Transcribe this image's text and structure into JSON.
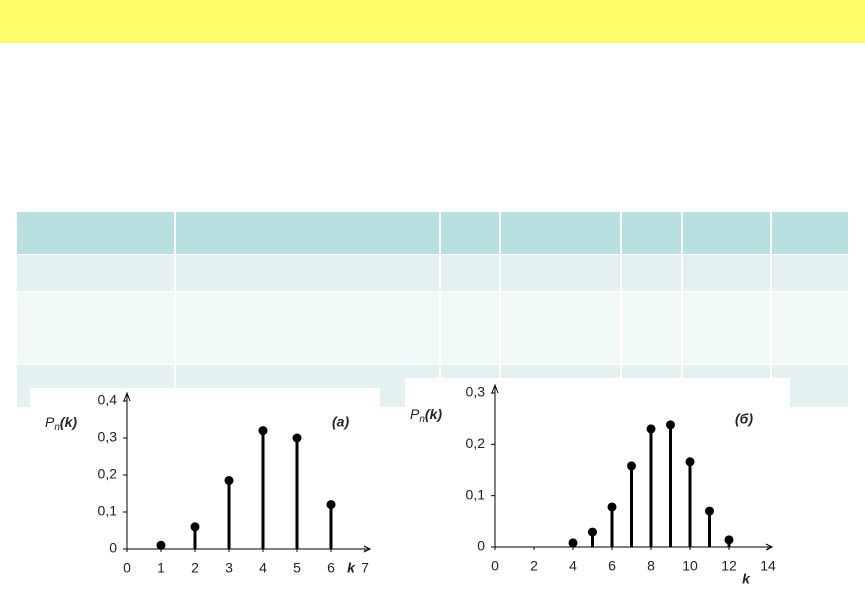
{
  "chart_data": [
    {
      "type": "stem",
      "annotation": "(а)",
      "ylabel": [
        "P",
        "n",
        "(k)"
      ],
      "xlabel": "k",
      "color": "#000000",
      "x": [
        1,
        2,
        3,
        4,
        5,
        6
      ],
      "values": [
        0.01,
        0.06,
        0.185,
        0.32,
        0.3,
        0.12
      ],
      "xlim": [
        0,
        7
      ],
      "xticks": [
        0,
        1,
        2,
        3,
        4,
        5,
        6,
        7
      ],
      "ylim": [
        0,
        0.4
      ],
      "yticks": [
        0,
        {
          "value": 0.1,
          "label": "0,1"
        },
        {
          "value": 0.2,
          "label": "0,2"
        },
        {
          "value": 0.3,
          "label": "0,3"
        },
        {
          "value": 0.4,
          "label": "0,4"
        }
      ]
    },
    {
      "type": "stem",
      "annotation": "(б)",
      "ylabel": [
        "P",
        "n",
        "(k)"
      ],
      "xlabel": "k",
      "color": "#000000",
      "x": [
        4,
        5,
        6,
        7,
        8,
        9,
        10,
        11,
        12
      ],
      "values": [
        0.008,
        0.029,
        0.078,
        0.158,
        0.23,
        0.238,
        0.166,
        0.07,
        0.014
      ],
      "xlim": [
        0,
        14
      ],
      "xticks": [
        0,
        2,
        4,
        6,
        8,
        10,
        12,
        14
      ],
      "ylim": [
        0,
        0.3
      ],
      "yticks": [
        0,
        {
          "value": 0.1,
          "label": "0,1"
        },
        {
          "value": 0.2,
          "label": "0,2"
        },
        {
          "value": 0.3,
          "label": "0,3"
        }
      ]
    }
  ]
}
